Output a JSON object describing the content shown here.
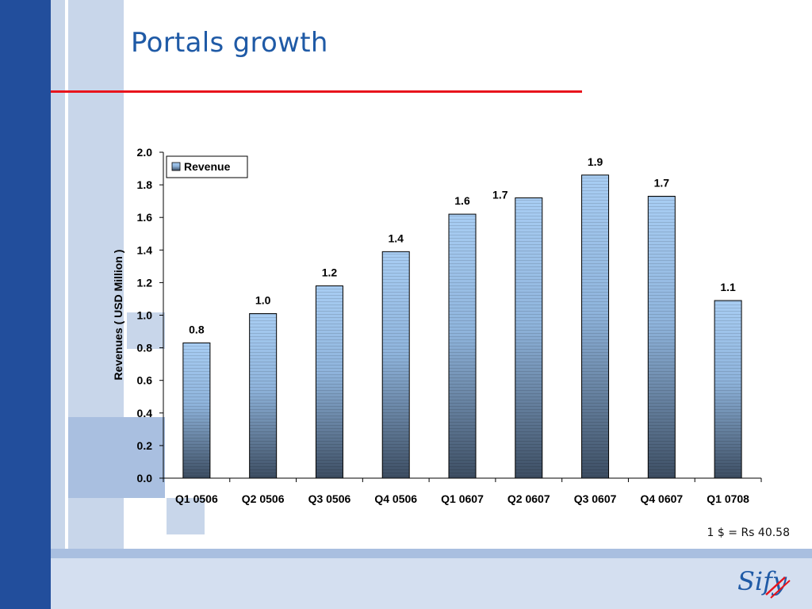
{
  "slide": {
    "title": "Portals growth",
    "note": "1 $ = Rs 40.58",
    "logo_text": "Sify",
    "colors": {
      "title": "#1f5aa6",
      "rule": "#e8141c",
      "band_dark": "#224e9c",
      "band_light": "#c8d6ea"
    }
  },
  "chart_data": {
    "type": "bar",
    "categories": [
      "Q1 0506",
      "Q2 0506",
      "Q3 0506",
      "Q4 0506",
      "Q1 0607",
      "Q2 0607",
      "Q3 0607",
      "Q4 0607",
      "Q1 0708"
    ],
    "values": [
      0.83,
      1.01,
      1.18,
      1.39,
      1.62,
      1.72,
      1.86,
      1.73,
      1.09
    ],
    "data_labels": [
      "0.8",
      "1.0",
      "1.2",
      "1.4",
      "1.6",
      "1.7",
      "1.9",
      "1.7",
      "1.1"
    ],
    "series": [
      {
        "name": "Revenue"
      }
    ],
    "ylabel": "Revenues ( USD Million )",
    "ylim": [
      0,
      2.0
    ],
    "yticks": [
      "0.0",
      "0.2",
      "0.4",
      "0.6",
      "0.8",
      "1.0",
      "1.2",
      "1.4",
      "1.6",
      "1.8",
      "2.0"
    ],
    "legend_position": "top-left",
    "grid": false
  }
}
